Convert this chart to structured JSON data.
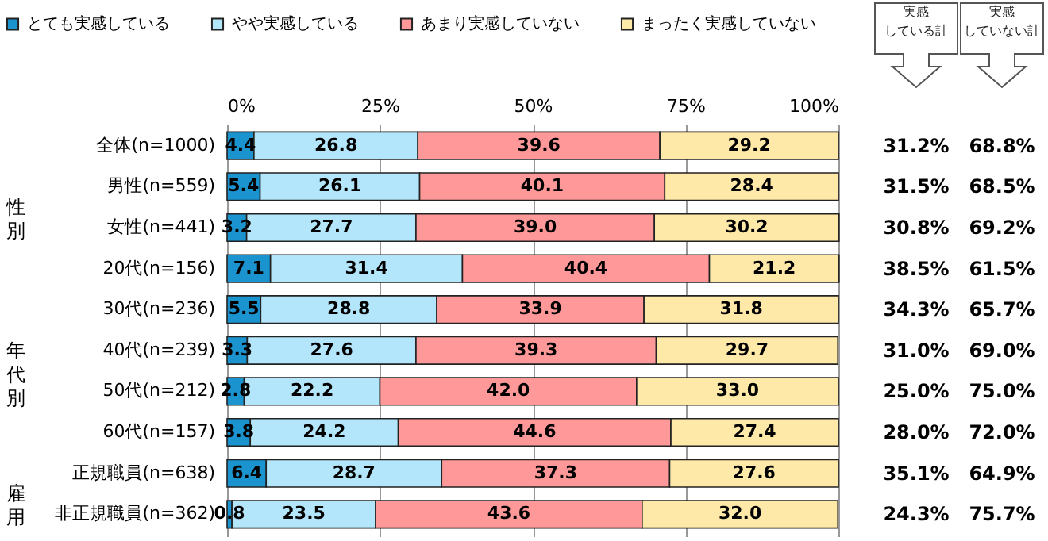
{
  "chart_data": {
    "type": "bar",
    "orientation": "horizontal",
    "stacked": true,
    "grid": "x",
    "legend": "top",
    "categories": [
      "全体(n=1000)",
      "男性(n=559)",
      "女性(n=441)",
      "20代(n=156)",
      "30代(n=236)",
      "40代(n=239)",
      "50代(n=212)",
      "60代(n=157)",
      "正規職員(n=638)",
      "非正規職員(n=362)"
    ],
    "series": [
      {
        "name": "とても実感している",
        "color": "#1b93cf",
        "values": [
          4.4,
          5.4,
          3.2,
          7.1,
          5.5,
          3.3,
          2.8,
          3.8,
          6.4,
          0.8
        ],
        "value_labels": [
          "4.4",
          "5.4",
          "3.2",
          "7.1",
          "5.5",
          "3.3",
          "2.8",
          "3.8",
          "6.4",
          "0.8"
        ]
      },
      {
        "name": "やや実感している",
        "color": "#b3e6fa",
        "values": [
          26.8,
          26.1,
          27.7,
          31.4,
          28.8,
          27.6,
          22.2,
          24.2,
          28.7,
          23.5
        ],
        "value_labels": [
          "26.8",
          "26.1",
          "27.7",
          "31.4",
          "28.8",
          "27.6",
          "22.2",
          "24.2",
          "28.7",
          "23.5"
        ]
      },
      {
        "name": "あまり実感していない",
        "color": "#ff9999",
        "values": [
          39.6,
          40.1,
          39.0,
          40.4,
          33.9,
          39.3,
          42.0,
          44.6,
          37.3,
          43.6
        ],
        "value_labels": [
          "39.6",
          "40.1",
          "39.0",
          "40.4",
          "33.9",
          "39.3",
          "42.0",
          "44.6",
          "37.3",
          "43.6"
        ]
      },
      {
        "name": "まったく実感していない",
        "color": "#ffe9a9",
        "values": [
          29.2,
          28.4,
          30.2,
          21.2,
          31.8,
          29.7,
          33.0,
          27.4,
          27.6,
          32.0
        ],
        "value_labels": [
          "29.2",
          "28.4",
          "30.2",
          "21.2",
          "31.8",
          "29.7",
          "33.0",
          "27.4",
          "27.6",
          "32.0"
        ]
      }
    ],
    "xlim": [
      0,
      100
    ],
    "xticks": [
      {
        "value": 0,
        "label": "0%"
      },
      {
        "value": 25,
        "label": "25%"
      },
      {
        "value": 50,
        "label": "50%"
      },
      {
        "value": 75,
        "label": "75%"
      },
      {
        "value": 100,
        "label": "100%"
      }
    ],
    "annotations": [
      "性別",
      "年代別",
      "雇用",
      "実感",
      "している計",
      "実感",
      "していない計",
      "31.2%",
      "68.8%",
      "31.5%",
      "68.5%",
      "30.8%",
      "69.2%",
      "38.5%",
      "61.5%",
      "34.3%",
      "65.7%",
      "31.0%",
      "69.0%",
      "25.0%",
      "75.0%",
      "28.0%",
      "72.0%",
      "35.1%",
      "64.9%",
      "24.3%",
      "75.7%"
    ]
  }
}
